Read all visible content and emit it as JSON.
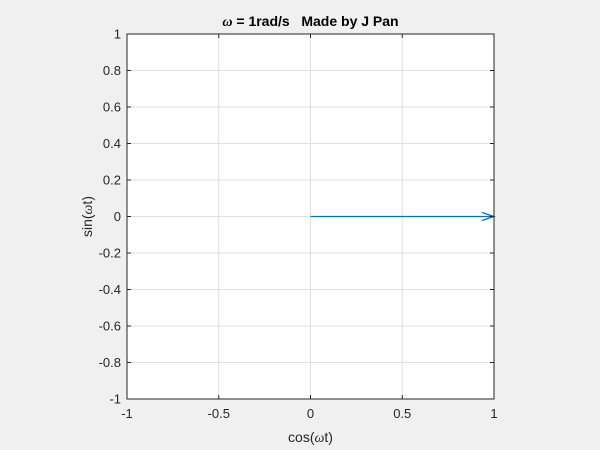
{
  "chart_data": {
    "type": "quiver",
    "title": {
      "symbol": "ω",
      "text": " = 1rad/s   Made by J Pan"
    },
    "xlabel": {
      "prefix": "cos(",
      "symbol": "ω",
      "suffix": "t)"
    },
    "ylabel": {
      "prefix": "sin(",
      "symbol": "ω",
      "suffix": "t)"
    },
    "xlim": [
      -1,
      1
    ],
    "ylim": [
      -1,
      1
    ],
    "xticks": [
      -1,
      -0.5,
      0,
      0.5,
      1
    ],
    "xtick_labels": [
      "-1",
      "-0.5",
      "0",
      "0.5",
      "1"
    ],
    "yticks": [
      -1,
      -0.8,
      -0.6,
      -0.4,
      -0.2,
      0,
      0.2,
      0.4,
      0.6,
      0.8,
      1
    ],
    "ytick_labels": [
      "-1",
      "-0.8",
      "-0.6",
      "-0.4",
      "-0.2",
      "0",
      "0.2",
      "0.4",
      "0.6",
      "0.8",
      "1"
    ],
    "grid": true,
    "arrows": [
      {
        "x0": 0,
        "y0": 0,
        "x1": 1,
        "y1": 0
      }
    ],
    "colors": {
      "figure_background": "#f0f0f0",
      "axes_background": "#ffffff",
      "axis": "#262626",
      "grid": "#dfdfdf",
      "arrow": "#0072bd"
    }
  }
}
